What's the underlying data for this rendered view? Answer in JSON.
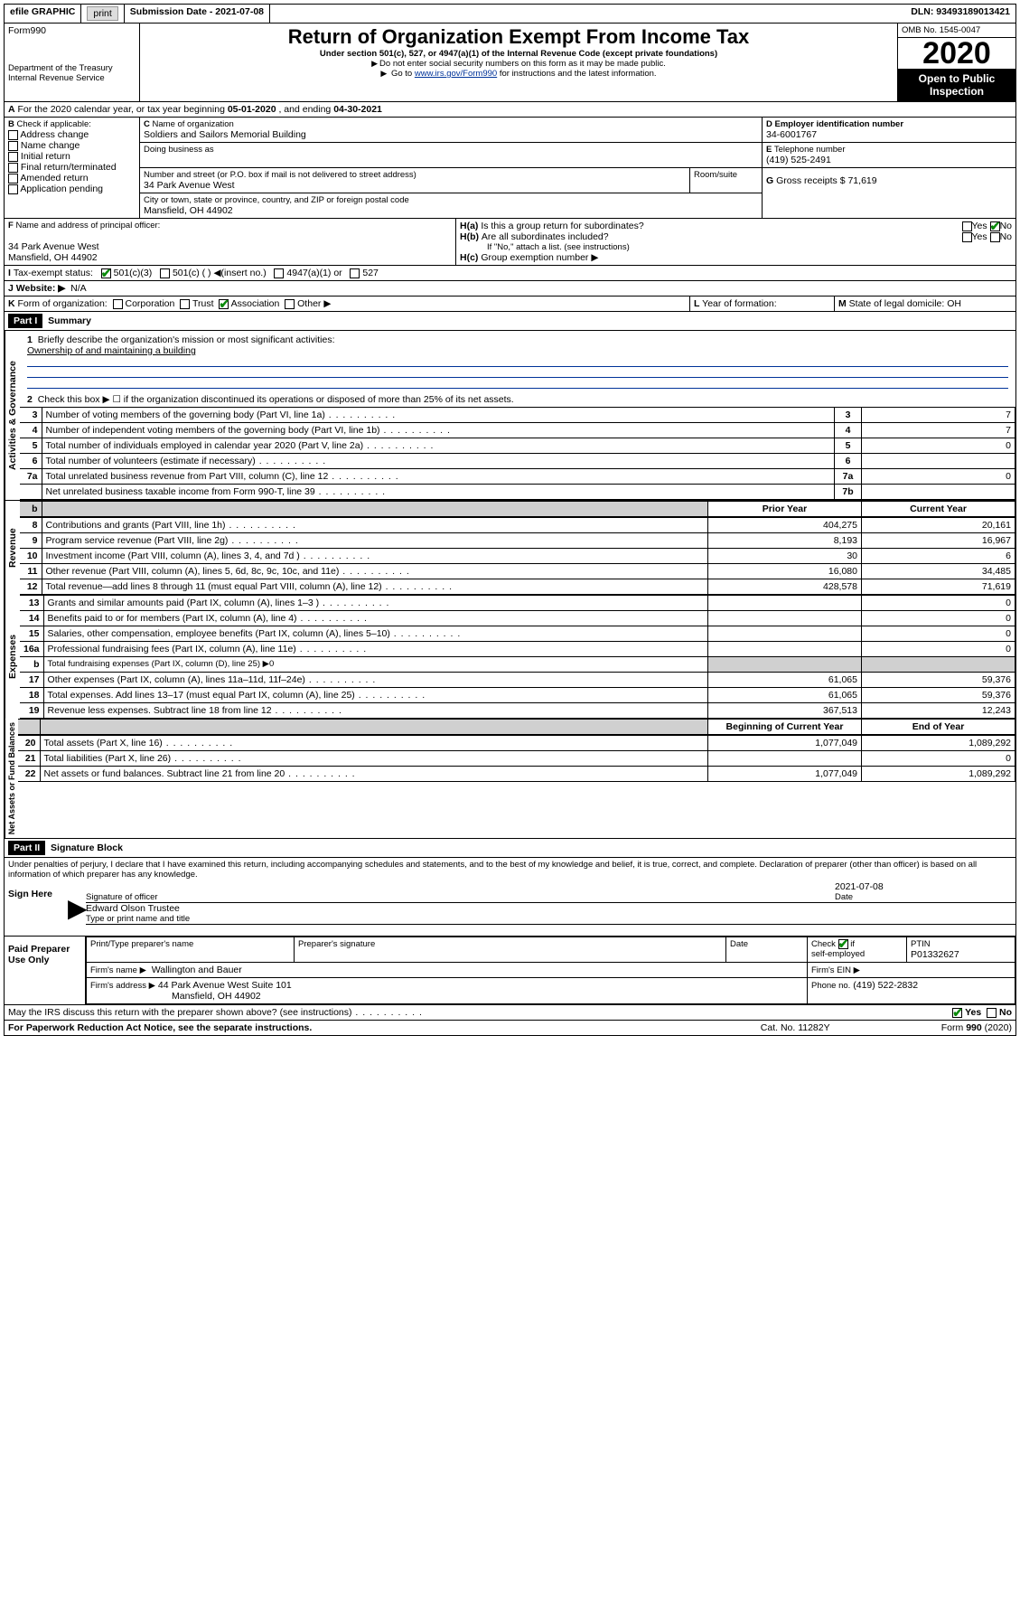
{
  "topbar": {
    "efile": "efile GRAPHIC",
    "print": "print",
    "sub_label": "Submission Date - 2021-07-08",
    "dln": "DLN: 93493189013421"
  },
  "header": {
    "form": "Form",
    "form_no": "990",
    "dept1": "Department of the Treasury",
    "dept2": "Internal Revenue Service",
    "title": "Return of Organization Exempt From Income Tax",
    "subtitle": "Under section 501(c), 527, or 4947(a)(1) of the Internal Revenue Code (except private foundations)",
    "note1": "Do not enter social security numbers on this form as it may be made public.",
    "note2_pre": "Go to ",
    "note2_link": "www.irs.gov/Form990",
    "note2_post": " for instructions and the latest information.",
    "omb": "OMB No. 1545-0047",
    "year": "2020",
    "open": "Open to Public Inspection"
  },
  "A": {
    "text_pre": "For the 2020 calendar year, or tax year beginning ",
    "begin": "05-01-2020",
    "mid": " , and ending ",
    "end": "04-30-2021"
  },
  "B": {
    "label": "Check if applicable:",
    "opts": [
      "Address change",
      "Name change",
      "Initial return",
      "Final return/terminated",
      "Amended return",
      "Application pending"
    ]
  },
  "C": {
    "name_label": "Name of organization",
    "name": "Soldiers and Sailors Memorial Building",
    "dba": "Doing business as",
    "street_label": "Number and street (or P.O. box if mail is not delivered to street address)",
    "street": "34 Park Avenue West",
    "room": "Room/suite",
    "city_label": "City or town, state or province, country, and ZIP or foreign postal code",
    "city": "Mansfield, OH  44902"
  },
  "D": {
    "label": "Employer identification number",
    "ein": "34-6001767"
  },
  "E": {
    "label": "Telephone number",
    "phone": "(419) 525-2491"
  },
  "G": {
    "label": "Gross receipts $",
    "val": "71,619"
  },
  "F": {
    "label": "Name and address of principal officer:",
    "addr1": "34 Park Avenue West",
    "addr2": "Mansfield, OH  44902"
  },
  "H": {
    "a": "Is this a group return for subordinates?",
    "b": "Are all subordinates included?",
    "b_note": "If \"No,\" attach a list. (see instructions)",
    "c": "Group exemption number ▶",
    "yes": "Yes",
    "no": "No"
  },
  "I": {
    "label": "Tax-exempt status:",
    "opts": [
      "501(c)(3)",
      "501(c) (  ) ◀(insert no.)",
      "4947(a)(1) or",
      "527"
    ]
  },
  "J": {
    "label": "Website: ▶",
    "val": "N/A"
  },
  "K": {
    "label": "Form of organization:",
    "opts": [
      "Corporation",
      "Trust",
      "Association",
      "Other ▶"
    ]
  },
  "L": {
    "label": "Year of formation:",
    "val": ""
  },
  "M": {
    "label": "State of legal domicile:",
    "val": "OH"
  },
  "partI": {
    "hdr": "Part I",
    "title": "Summary",
    "q1": "Briefly describe the organization's mission or most significant activities:",
    "q1_ans": "Ownership of and maintaining a building",
    "q2": "Check this box ▶ ☐  if the organization discontinued its operations or disposed of more than 25% of its net assets.",
    "sections": {
      "gov": "Activities & Governance",
      "rev": "Revenue",
      "exp": "Expenses",
      "net": "Net Assets or Fund Balances"
    },
    "col_prior": "Prior Year",
    "col_curr": "Current Year",
    "col_boc": "Beginning of Current Year",
    "col_eoy": "End of Year",
    "rows_gov": [
      {
        "n": "3",
        "d": "Number of voting members of the governing body (Part VI, line 1a)",
        "c": "3",
        "v": "7"
      },
      {
        "n": "4",
        "d": "Number of independent voting members of the governing body (Part VI, line 1b)",
        "c": "4",
        "v": "7"
      },
      {
        "n": "5",
        "d": "Total number of individuals employed in calendar year 2020 (Part V, line 2a)",
        "c": "5",
        "v": "0"
      },
      {
        "n": "6",
        "d": "Total number of volunteers (estimate if necessary)",
        "c": "6",
        "v": ""
      },
      {
        "n": "7a",
        "d": "Total unrelated business revenue from Part VIII, column (C), line 12",
        "c": "7a",
        "v": "0"
      },
      {
        "n": "",
        "d": "Net unrelated business taxable income from Form 990-T, line 39",
        "c": "7b",
        "v": ""
      }
    ],
    "rows_rev": [
      {
        "n": "8",
        "d": "Contributions and grants (Part VIII, line 1h)",
        "p": "404,275",
        "c": "20,161"
      },
      {
        "n": "9",
        "d": "Program service revenue (Part VIII, line 2g)",
        "p": "8,193",
        "c": "16,967"
      },
      {
        "n": "10",
        "d": "Investment income (Part VIII, column (A), lines 3, 4, and 7d )",
        "p": "30",
        "c": "6"
      },
      {
        "n": "11",
        "d": "Other revenue (Part VIII, column (A), lines 5, 6d, 8c, 9c, 10c, and 11e)",
        "p": "16,080",
        "c": "34,485"
      },
      {
        "n": "12",
        "d": "Total revenue—add lines 8 through 11 (must equal Part VIII, column (A), line 12)",
        "p": "428,578",
        "c": "71,619"
      }
    ],
    "rows_exp": [
      {
        "n": "13",
        "d": "Grants and similar amounts paid (Part IX, column (A), lines 1–3 )",
        "p": "",
        "c": "0"
      },
      {
        "n": "14",
        "d": "Benefits paid to or for members (Part IX, column (A), line 4)",
        "p": "",
        "c": "0"
      },
      {
        "n": "15",
        "d": "Salaries, other compensation, employee benefits (Part IX, column (A), lines 5–10)",
        "p": "",
        "c": "0"
      },
      {
        "n": "16a",
        "d": "Professional fundraising fees (Part IX, column (A), line 11e)",
        "p": "",
        "c": "0"
      },
      {
        "n": "b",
        "d": "Total fundraising expenses (Part IX, column (D), line 25) ▶0",
        "p": null,
        "c": null,
        "shade": true,
        "smalldesc": true
      },
      {
        "n": "17",
        "d": "Other expenses (Part IX, column (A), lines 11a–11d, 11f–24e)",
        "p": "61,065",
        "c": "59,376"
      },
      {
        "n": "18",
        "d": "Total expenses. Add lines 13–17 (must equal Part IX, column (A), line 25)",
        "p": "61,065",
        "c": "59,376"
      },
      {
        "n": "19",
        "d": "Revenue less expenses. Subtract line 18 from line 12",
        "p": "367,513",
        "c": "12,243"
      }
    ],
    "rows_net": [
      {
        "n": "20",
        "d": "Total assets (Part X, line 16)",
        "p": "1,077,049",
        "c": "1,089,292"
      },
      {
        "n": "21",
        "d": "Total liabilities (Part X, line 26)",
        "p": "",
        "c": "0"
      },
      {
        "n": "22",
        "d": "Net assets or fund balances. Subtract line 21 from line 20",
        "p": "1,077,049",
        "c": "1,089,292"
      }
    ]
  },
  "partII": {
    "hdr": "Part II",
    "title": "Signature Block",
    "perjury": "Under penalties of perjury, I declare that I have examined this return, including accompanying schedules and statements, and to the best of my knowledge and belief, it is true, correct, and complete. Declaration of preparer (other than officer) is based on all information of which preparer has any knowledge.",
    "sign": "Sign Here",
    "sig_officer": "Signature of officer",
    "date": "Date",
    "date_val": "2021-07-08",
    "name_title": "Edward Olson  Trustee",
    "name_title_label": "Type or print name and title",
    "paid": "Paid Preparer Use Only",
    "pp_name": "Print/Type preparer's name",
    "pp_sig": "Preparer's signature",
    "pp_date": "Date",
    "pp_check": "Check",
    "pp_self": "self-employed",
    "pp_if": "if",
    "ptin_label": "PTIN",
    "ptin": "P01332627",
    "firm_name_label": "Firm's name   ▶",
    "firm_name": "Wallington and Bauer",
    "firm_ein_label": "Firm's EIN ▶",
    "firm_addr_label": "Firm's address ▶",
    "firm_addr1": "44 Park Avenue West Suite 101",
    "firm_addr2": "Mansfield, OH  44902",
    "firm_phone_label": "Phone no.",
    "firm_phone": "(419) 522-2832",
    "discuss": "May the IRS discuss this return with the preparer shown above? (see instructions)"
  },
  "footer": {
    "pra": "For Paperwork Reduction Act Notice, see the separate instructions.",
    "cat": "Cat. No. 11282Y",
    "form": "Form 990 (2020)"
  }
}
